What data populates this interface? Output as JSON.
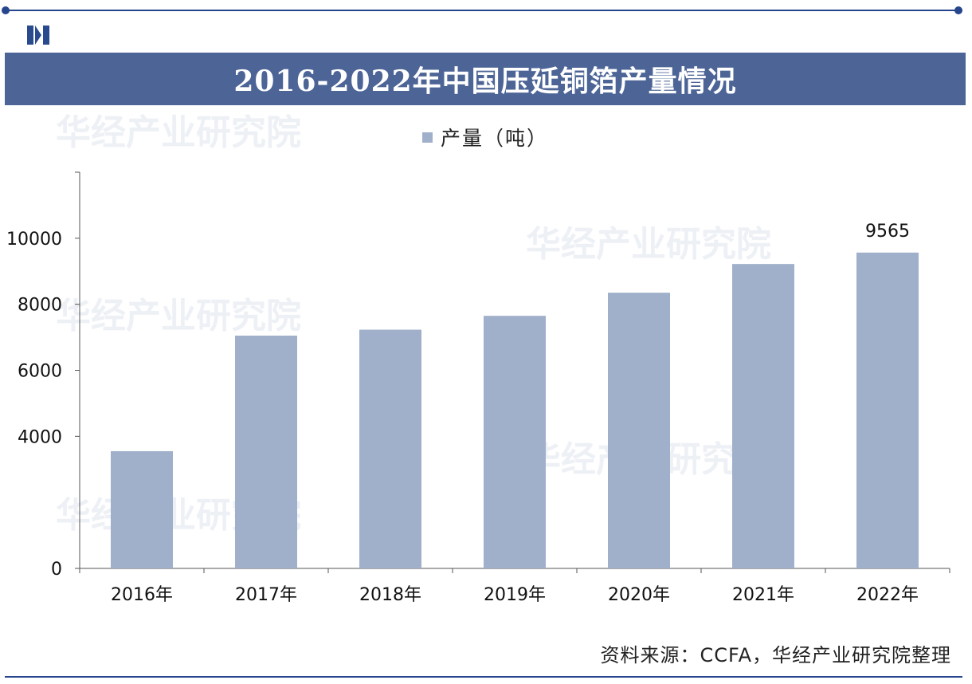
{
  "title": "2016-2022年中国压延铜箔产量情况",
  "source": "资料来源：CCFA，华经产业研究院整理",
  "watermark": "华经产业研究院",
  "colors": {
    "bar": "#a0b0ca",
    "title_bar": "#4c6496",
    "frame": "#25458c"
  },
  "chart_data": {
    "type": "bar",
    "categories": [
      "2016年",
      "2017年",
      "2018年",
      "2019年",
      "2020年",
      "2021年",
      "2022年"
    ],
    "series": [
      {
        "name": "产量（吨）",
        "values": [
          3550,
          7050,
          7230,
          7650,
          8350,
          9220,
          9565
        ]
      }
    ],
    "ylim": [
      0,
      12000
    ],
    "yticks": [
      0,
      4000,
      6000,
      8000,
      10000
    ],
    "data_labels": {
      "6": "9565"
    },
    "legend": "top-center",
    "grid": false
  }
}
